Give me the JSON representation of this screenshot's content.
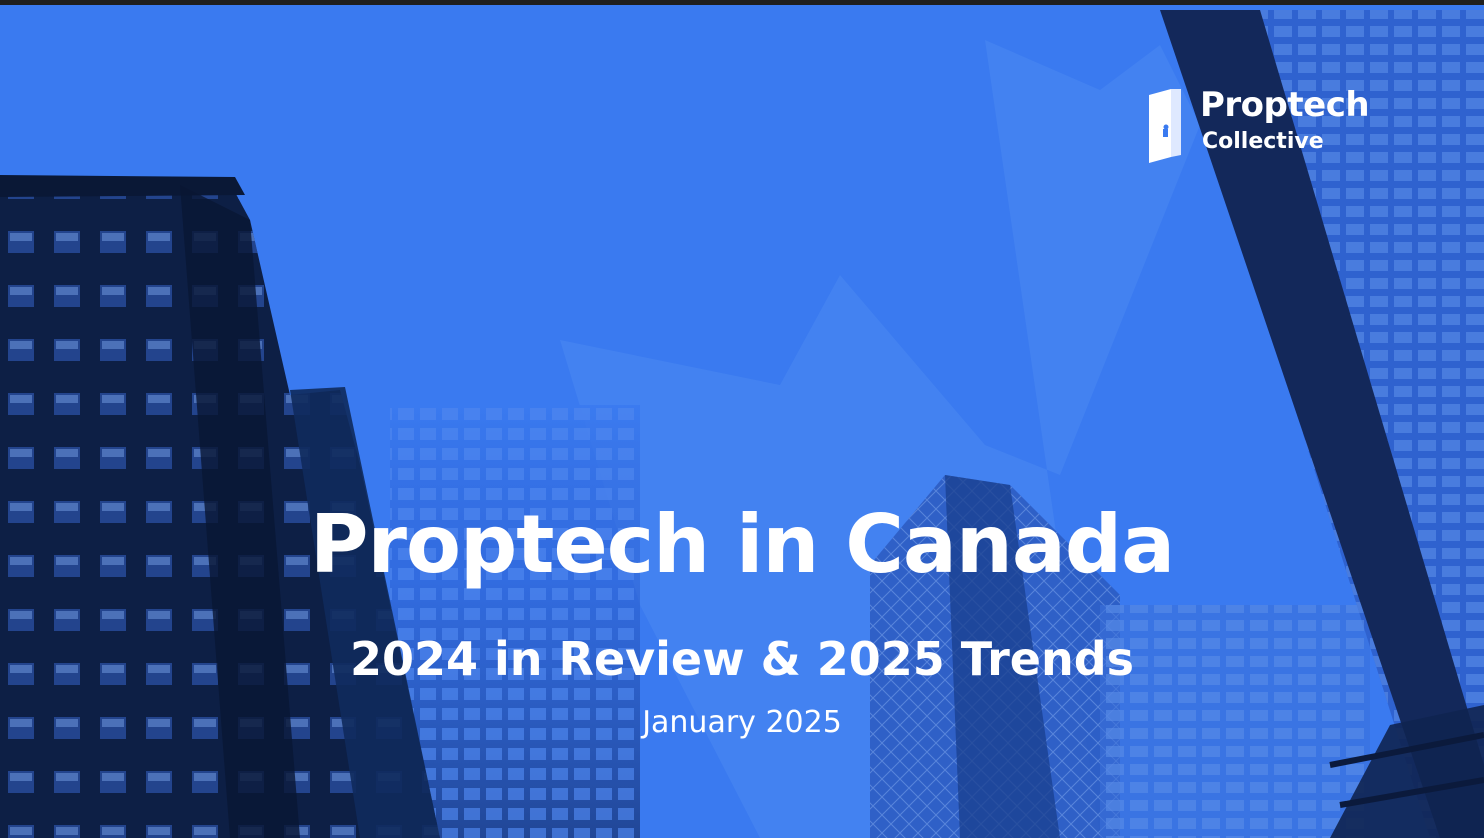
{
  "logo": {
    "name": "Proptech",
    "sub": "Collective",
    "icon": "door-icon"
  },
  "title": "Proptech in Canada",
  "subtitle": "2024 in Review & 2025 Trends",
  "date": "January 2025",
  "colors": {
    "background": "#3a7af0",
    "building_dark": "#0d1f45",
    "building_mid": "#1c3d86",
    "leaf": "#4b88f2",
    "text": "#ffffff"
  }
}
